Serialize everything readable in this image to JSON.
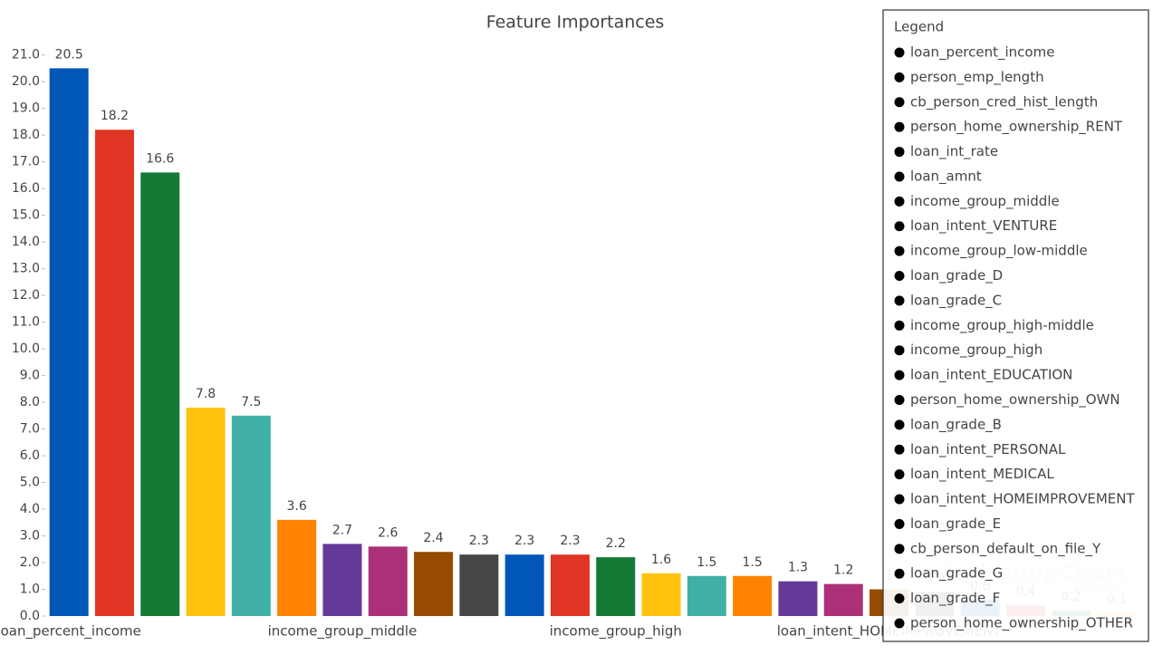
{
  "chart_data": {
    "type": "bar",
    "title": "Feature Importances",
    "categories": [
      "loan_percent_income",
      "person_emp_length",
      "cb_person_cred_hist_length",
      "person_home_ownership_RENT",
      "loan_int_rate",
      "loan_amnt",
      "income_group_middle",
      "loan_intent_VENTURE",
      "income_group_low-middle",
      "loan_grade_D",
      "loan_grade_C",
      "income_group_high-middle",
      "income_group_high",
      "loan_intent_EDUCATION",
      "person_home_ownership_OWN",
      "loan_grade_B",
      "loan_intent_PERSONAL",
      "loan_intent_MEDICAL",
      "loan_intent_HOMEIMPROVEMENT",
      "loan_grade_E",
      "cb_person_default_on_file_Y",
      "loan_grade_G",
      "loan_grade_F",
      "person_home_ownership_OTHER"
    ],
    "values": [
      20.5,
      18.2,
      16.6,
      7.8,
      7.5,
      3.6,
      2.7,
      2.6,
      2.4,
      2.3,
      2.3,
      2.3,
      2.2,
      1.6,
      1.5,
      1.5,
      1.3,
      1.2,
      1.0,
      0.9,
      0.6,
      0.4,
      0.2,
      0.1
    ],
    "colors": [
      "#0057b8",
      "#e03524",
      "#147a36",
      "#ffc20e",
      "#40b0a6",
      "#ff8200",
      "#65399a",
      "#ab3078",
      "#964b00",
      "#464646",
      "#0057b8",
      "#e03524",
      "#147a36",
      "#ffc20e",
      "#40b0a6",
      "#ff8200",
      "#65399a",
      "#ab3078",
      "#964b00",
      "#464646",
      "#0057b8",
      "#e03524",
      "#147a36",
      "#ffc20e"
    ],
    "ylim": [
      0,
      21.7
    ],
    "yticks": [
      {
        "value": 0,
        "label": "0.0"
      },
      {
        "value": 1,
        "label": "1.0"
      },
      {
        "value": 2,
        "label": "2.0"
      },
      {
        "value": 3,
        "label": "3.0"
      },
      {
        "value": 4,
        "label": "4.0"
      },
      {
        "value": 5,
        "label": "5.0"
      },
      {
        "value": 6,
        "label": "6.0"
      },
      {
        "value": 7,
        "label": "7.0"
      },
      {
        "value": 8,
        "label": "8.0"
      },
      {
        "value": 9,
        "label": "9.0"
      },
      {
        "value": 10,
        "label": "10.0"
      },
      {
        "value": 11,
        "label": "11.0"
      },
      {
        "value": 12,
        "label": "12.0"
      },
      {
        "value": 13,
        "label": "13.0"
      },
      {
        "value": 14,
        "label": "14.0"
      },
      {
        "value": 15,
        "label": "15.0"
      },
      {
        "value": 16,
        "label": "16.0"
      },
      {
        "value": 17,
        "label": "17.0"
      },
      {
        "value": 18,
        "label": "18.0"
      },
      {
        "value": 19,
        "label": "19.0"
      },
      {
        "value": 20,
        "label": "20.0"
      },
      {
        "value": 21,
        "label": "21.0"
      }
    ],
    "xlabel_every": 6,
    "legend_title": "Legend",
    "legend": "right",
    "watermark": "LightningChart",
    "watermark_sub": "PYTHON"
  }
}
